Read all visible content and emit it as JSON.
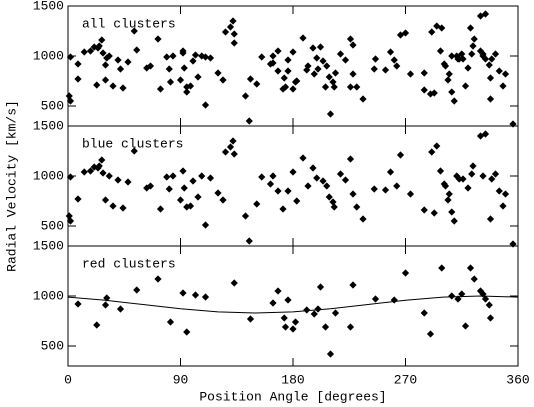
{
  "chart_data": [
    {
      "type": "scatter",
      "label": "all clusters",
      "x": [
        2,
        1,
        2,
        8,
        13,
        18,
        21,
        24,
        25,
        27,
        28,
        30,
        33,
        36,
        40,
        44,
        48,
        53,
        63,
        66,
        74,
        79,
        81,
        84,
        90,
        92,
        93,
        95,
        98,
        100,
        104,
        107,
        110,
        114,
        120,
        124,
        126,
        130,
        132,
        133,
        142,
        145,
        151,
        155,
        162,
        164,
        168,
        172,
        176,
        180,
        183,
        188,
        192,
        196,
        199,
        204,
        207,
        209,
        212,
        213,
        218,
        222,
        226,
        228,
        231,
        236,
        245,
        254,
        258,
        263,
        266,
        274,
        285,
        291,
        295,
        298,
        301,
        302,
        304,
        307,
        309,
        311,
        313,
        316,
        320,
        323,
        324,
        330,
        334,
        338,
        339,
        342,
        345,
        348,
        350,
        356,
        332,
        293,
        305,
        8,
        23,
        30,
        31,
        42,
        55,
        72,
        82,
        92,
        95,
        102,
        110,
        133,
        146,
        164,
        168,
        173,
        174,
        176,
        180,
        182,
        191,
        197,
        200,
        202,
        206,
        210,
        214,
        226,
        228,
        246,
        261,
        270,
        285,
        290,
        299,
        307,
        312,
        315,
        318,
        322,
        325,
        330,
        332,
        334,
        337,
        338
      ],
      "values": [
        990,
        600,
        550,
        770,
        1040,
        1050,
        1090,
        1080,
        1100,
        1160,
        1030,
        760,
        1000,
        700,
        960,
        680,
        940,
        1250,
        880,
        900,
        670,
        990,
        870,
        1000,
        760,
        1050,
        880,
        690,
        700,
        950,
        790,
        1000,
        510,
        980,
        830,
        760,
        1240,
        1290,
        1350,
        1220,
        600,
        350,
        720,
        990,
        920,
        1000,
        850,
        670,
        850,
        1040,
        750,
        1180,
        900,
        1080,
        980,
        950,
        900,
        790,
        740,
        690,
        1020,
        960,
        1170,
        820,
        690,
        570,
        870,
        860,
        1040,
        900,
        1210,
        820,
        660,
        1240,
        1300,
        1050,
        920,
        900,
        760,
        640,
        550,
        1000,
        970,
        970,
        880,
        1020,
        1100,
        1400,
        1420,
        570,
        970,
        1020,
        850,
        700,
        820,
        320,
        1000,
        630,
        820,
        920,
        710,
        910,
        980,
        870,
        1060,
        1170,
        740,
        1030,
        640,
        1010,
        990,
        1130,
        770,
        930,
        1050,
        780,
        690,
        960,
        670,
        740,
        860,
        820,
        870,
        1090,
        690,
        420,
        830,
        690,
        1110,
        970,
        960,
        1230,
        830,
        620,
        1280,
        1000,
        970,
        1020,
        700,
        1280,
        1170,
        1050,
        1020,
        970,
        910,
        780
      ],
      "xlim": [
        0,
        360
      ],
      "ylim": [
        300,
        1500
      ],
      "yticks": [
        500,
        1000,
        1500
      ]
    },
    {
      "type": "scatter",
      "label": "blue clusters",
      "ylabel": "Radial Velocity [km/s]",
      "x": [
        2,
        1,
        2,
        8,
        13,
        18,
        21,
        24,
        25,
        27,
        28,
        30,
        33,
        36,
        40,
        44,
        48,
        53,
        63,
        66,
        74,
        79,
        81,
        84,
        90,
        92,
        93,
        95,
        98,
        100,
        104,
        107,
        110,
        114,
        120,
        124,
        126,
        130,
        132,
        133,
        142,
        145,
        151,
        155,
        162,
        164,
        168,
        172,
        176,
        180,
        183,
        188,
        192,
        196,
        199,
        204,
        207,
        209,
        212,
        213,
        218,
        222,
        226,
        228,
        231,
        236,
        245,
        254,
        258,
        263,
        266,
        274,
        285,
        291,
        295,
        298,
        301,
        302,
        304,
        307,
        309,
        311,
        313,
        316,
        320,
        323,
        324,
        330,
        334,
        338,
        339,
        342,
        345,
        348,
        350,
        356,
        332,
        293,
        305
      ],
      "values": [
        990,
        600,
        550,
        770,
        1040,
        1050,
        1090,
        1080,
        1100,
        1160,
        1030,
        760,
        1000,
        700,
        960,
        680,
        940,
        1250,
        880,
        900,
        670,
        990,
        870,
        1000,
        760,
        1050,
        880,
        690,
        700,
        950,
        790,
        1000,
        510,
        980,
        830,
        760,
        1240,
        1290,
        1350,
        1220,
        600,
        350,
        720,
        990,
        920,
        1000,
        850,
        670,
        850,
        1040,
        750,
        1180,
        900,
        1080,
        980,
        950,
        900,
        790,
        740,
        690,
        1020,
        960,
        1170,
        820,
        690,
        570,
        870,
        860,
        1040,
        900,
        1210,
        820,
        660,
        1240,
        1300,
        1050,
        920,
        900,
        760,
        640,
        550,
        1000,
        970,
        970,
        880,
        1020,
        1100,
        1400,
        1420,
        570,
        970,
        1020,
        850,
        700,
        820,
        320,
        1000,
        630,
        820
      ],
      "xlim": [
        0,
        360
      ],
      "ylim": [
        300,
        1500
      ],
      "yticks": [
        500,
        1000,
        1500
      ]
    },
    {
      "type": "scatter",
      "label": "red clusters",
      "xlabel": "Position Angle [degrees]",
      "x": [
        8,
        23,
        30,
        31,
        42,
        55,
        72,
        82,
        92,
        95,
        102,
        110,
        133,
        146,
        164,
        168,
        173,
        174,
        176,
        180,
        182,
        191,
        197,
        200,
        202,
        206,
        210,
        214,
        226,
        228,
        246,
        261,
        270,
        285,
        290,
        299,
        307,
        312,
        315,
        318,
        322,
        325,
        330,
        332,
        334,
        337,
        338
      ],
      "values": [
        920,
        710,
        910,
        980,
        870,
        1060,
        1170,
        740,
        1030,
        640,
        1010,
        990,
        1130,
        770,
        930,
        1050,
        780,
        690,
        960,
        670,
        740,
        860,
        820,
        870,
        1090,
        690,
        420,
        830,
        690,
        1110,
        970,
        960,
        1230,
        830,
        620,
        1280,
        1000,
        970,
        1020,
        700,
        1280,
        1170,
        1050,
        1020,
        970,
        910,
        780
      ],
      "curve": {
        "x": [
          0,
          30,
          60,
          90,
          120,
          150,
          180,
          210,
          240,
          270,
          300,
          330,
          360
        ],
        "values": [
          989,
          957,
          915,
          873,
          841,
          830,
          841,
          873,
          915,
          957,
          989,
          1000,
          989
        ]
      },
      "xlim": [
        0,
        360
      ],
      "ylim": [
        300,
        1500
      ],
      "yticks": [
        500,
        1000,
        1500
      ],
      "xticks": [
        0,
        90,
        180,
        270,
        360
      ]
    }
  ]
}
